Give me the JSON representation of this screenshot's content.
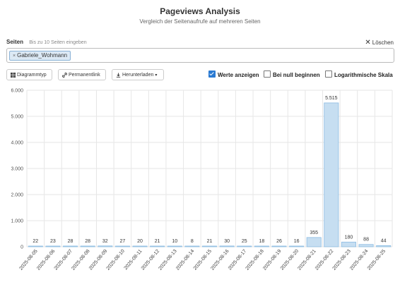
{
  "header": {
    "title": "Pageviews Analysis",
    "subtitle": "Vergleich der Seitenaufrufe auf mehreren Seiten"
  },
  "pages": {
    "label": "Seiten",
    "hint": "Bis zu 10 Seiten eingeben",
    "clear_label": "Löschen",
    "selected": [
      "Gabriele_Wohmann"
    ]
  },
  "toolbar": {
    "chart_type_label": "Diagrammtyp",
    "permalink_label": "Permanentlink",
    "download_label": "Herunterladen",
    "show_values_label": "Werte anzeigen",
    "show_values_checked": true,
    "begin_at_zero_label": "Bei null beginnen",
    "begin_at_zero_checked": false,
    "log_scale_label": "Logarithmische Skala",
    "log_scale_checked": false
  },
  "colors": {
    "bar_fill": "#c6def1",
    "bar_stroke": "#8cbce2",
    "grid": "#e6e6e6",
    "accent": "#2a7ad2"
  },
  "chart_data": {
    "type": "bar",
    "categories": [
      "2025-08-05",
      "2025-08-06",
      "2025-08-07",
      "2025-08-08",
      "2025-08-09",
      "2025-08-10",
      "2025-08-11",
      "2025-08-12",
      "2025-08-13",
      "2025-08-14",
      "2025-08-15",
      "2025-08-16",
      "2025-08-17",
      "2025-08-18",
      "2025-08-19",
      "2025-08-20",
      "2025-08-21",
      "2025-08-22",
      "2025-08-23",
      "2025-08-24",
      "2025-08-25"
    ],
    "series": [
      {
        "name": "Gabriele_Wohmann",
        "values": [
          22,
          23,
          28,
          28,
          32,
          27,
          20,
          21,
          10,
          8,
          21,
          30,
          25,
          18,
          26,
          16,
          355,
          5515,
          180,
          88,
          44
        ]
      }
    ],
    "value_labels": [
      "22",
      "23",
      "28",
      "28",
      "32",
      "27",
      "20",
      "21",
      "10",
      "8",
      "21",
      "30",
      "25",
      "18",
      "26",
      "16",
      "355",
      "5.515",
      "180",
      "88",
      "44"
    ],
    "y_ticks": [
      "0",
      "1.000",
      "2.000",
      "3.000",
      "4.000",
      "5.000",
      "6.000"
    ],
    "ylim": [
      0,
      6000
    ],
    "grid": true
  }
}
